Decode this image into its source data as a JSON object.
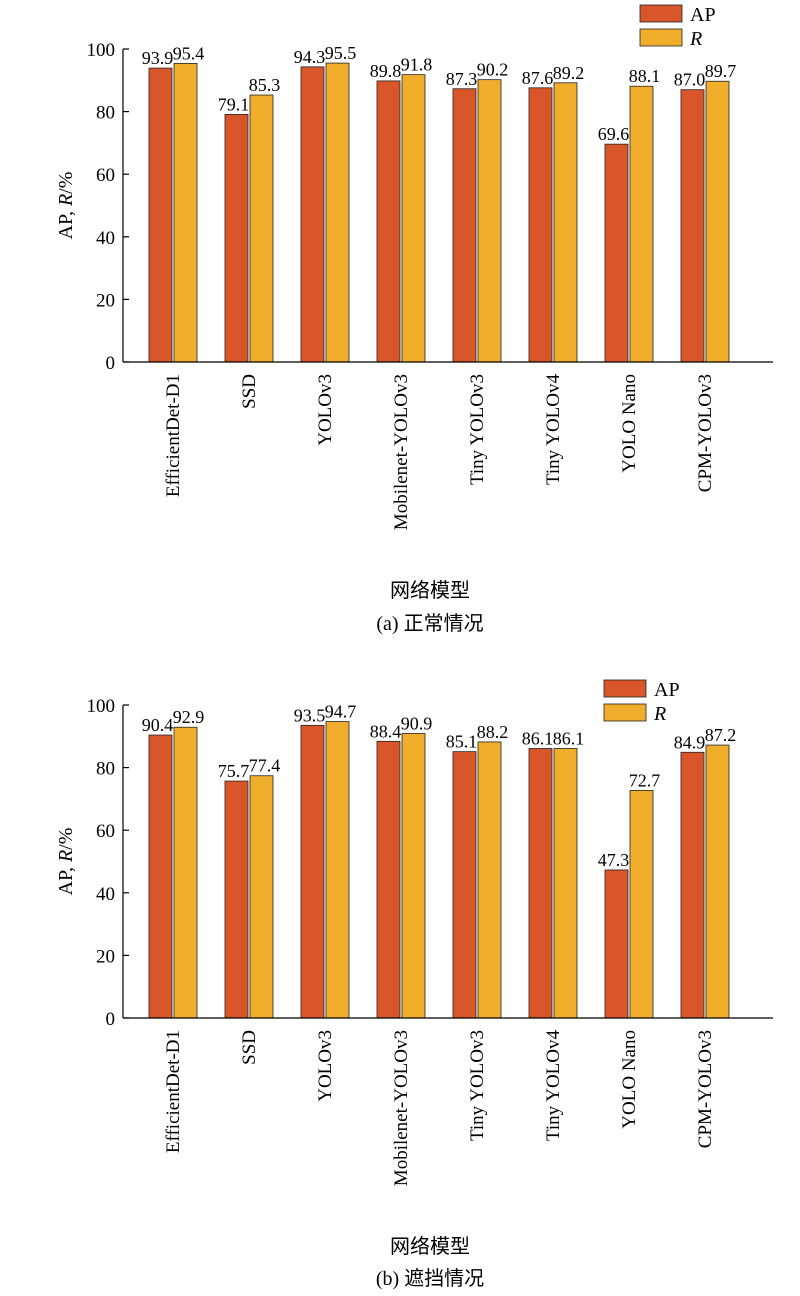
{
  "colors": {
    "ap": "#d9562a",
    "r": "#f0ae2c",
    "axis": "#000000"
  },
  "chart_data": [
    {
      "type": "bar",
      "caption": "(a) 正常情况",
      "xlabel": "网络模型",
      "ylabel_prefix": "AP, ",
      "ylabel_italic": "R",
      "ylabel_suffix": "/%",
      "ylim": [
        0,
        100
      ],
      "yticks": [
        0,
        20,
        40,
        60,
        80,
        100
      ],
      "legend_position": "top-right",
      "categories": [
        "EfficientDet-D1",
        "SSD",
        "YOLOv3",
        "Mobilenet-YOLOv3",
        "Tiny YOLOv3",
        "Tiny YOLOv4",
        "YOLO Nano",
        "CPM-YOLOv3"
      ],
      "series": [
        {
          "name": "AP",
          "italic": false,
          "values": [
            93.9,
            79.1,
            94.3,
            89.8,
            87.3,
            87.6,
            69.6,
            87.0
          ],
          "labels": [
            "93.9",
            "79.1",
            "94.3",
            "89.8",
            "87.3",
            "87.6",
            "69.6",
            "87.0"
          ]
        },
        {
          "name": "R",
          "italic": true,
          "values": [
            95.4,
            85.3,
            95.5,
            91.8,
            90.2,
            89.2,
            88.1,
            89.7
          ],
          "labels": [
            "95.4",
            "85.3",
            "95.5",
            "91.8",
            "90.2",
            "89.2",
            "88.1",
            "89.7"
          ]
        }
      ]
    },
    {
      "type": "bar",
      "caption": "(b) 遮挡情况",
      "xlabel": "网络模型",
      "ylabel_prefix": "AP, ",
      "ylabel_italic": "R",
      "ylabel_suffix": "/%",
      "ylim": [
        0,
        100
      ],
      "yticks": [
        0,
        20,
        40,
        60,
        80,
        100
      ],
      "legend_position": "top-right",
      "categories": [
        "EfficientDet-D1",
        "SSD",
        "YOLOv3",
        "Mobilenet-YOLOv3",
        "Tiny YOLOv3",
        "Tiny YOLOv4",
        "YOLO Nano",
        "CPM-YOLOv3"
      ],
      "series": [
        {
          "name": "AP",
          "italic": false,
          "values": [
            90.4,
            75.7,
            93.5,
            88.4,
            85.1,
            86.1,
            47.3,
            84.9
          ],
          "labels": [
            "90.4",
            "75.7",
            "93.5",
            "88.4",
            "85.1",
            "86.1",
            "47.3",
            "84.9"
          ]
        },
        {
          "name": "R",
          "italic": true,
          "values": [
            92.9,
            77.4,
            94.7,
            90.9,
            88.2,
            86.1,
            72.7,
            87.2
          ],
          "labels": [
            "92.9",
            "77.4",
            "94.7",
            "90.9",
            "88.2",
            "86.1",
            "72.7",
            "87.2"
          ]
        }
      ]
    }
  ]
}
